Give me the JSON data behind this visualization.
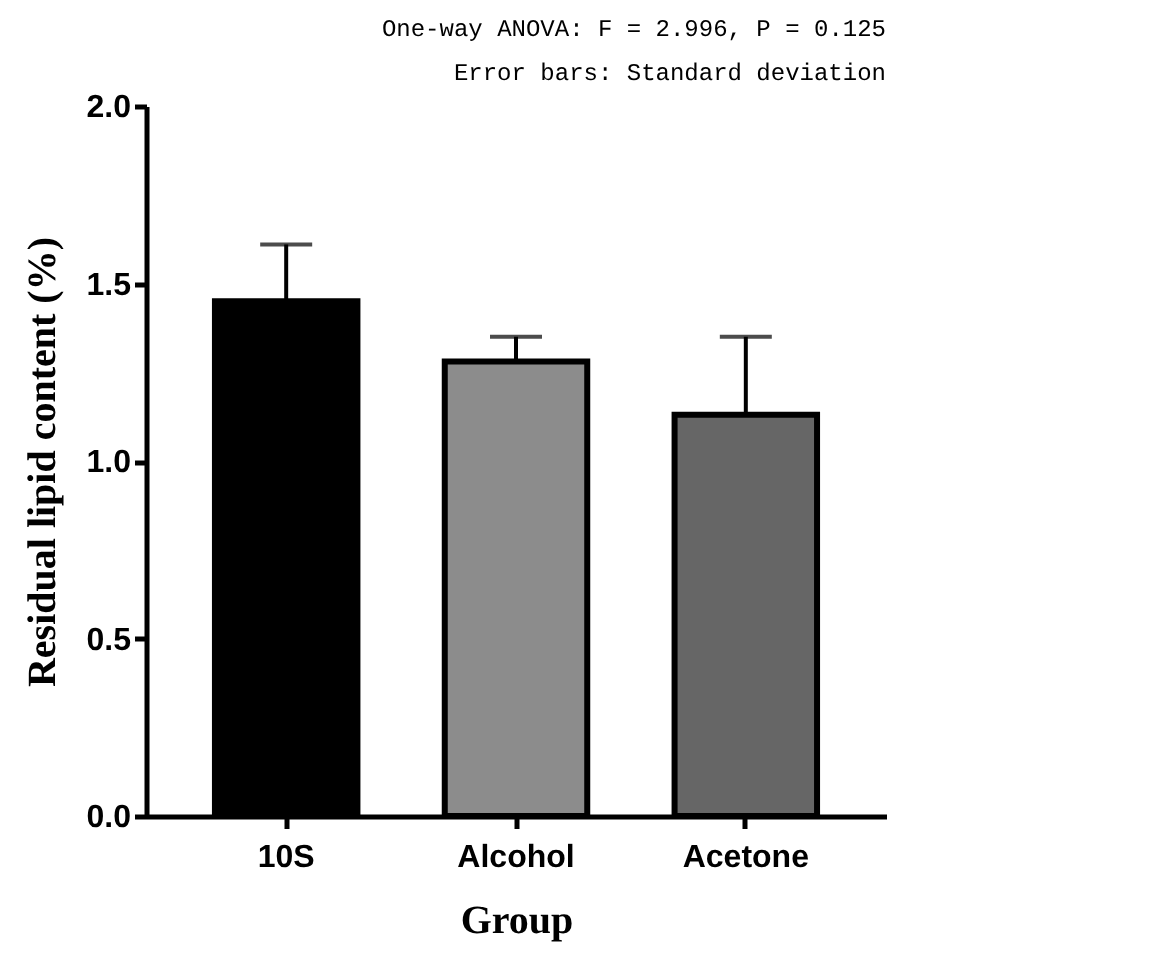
{
  "chart_data": {
    "type": "bar",
    "xlabel": "Group",
    "ylabel": "Residual lipid content (%)",
    "categories": [
      "10S",
      "Alcohol",
      "Acetone"
    ],
    "values": [
      1.45,
      1.28,
      1.13
    ],
    "colors": [
      "#000000",
      "#8c8c8c",
      "#666666"
    ],
    "errors": [
      [
        1.45,
        1.61
      ],
      [
        1.28,
        1.35
      ],
      [
        1.13,
        1.35
      ]
    ],
    "ylim": [
      0,
      2
    ],
    "yticks": [
      {
        "value": 0,
        "label": "0.0"
      },
      {
        "value": 0.5,
        "label": "0.5"
      },
      {
        "value": 1,
        "label": "1.0"
      },
      {
        "value": 1.5,
        "label": "1.5"
      },
      {
        "value": 2,
        "label": "2.0"
      }
    ],
    "grid": false,
    "annotations": [
      "One-way ANOVA: F = 2.996, P = 0.125",
      "Error bars: Standard deviation"
    ]
  }
}
